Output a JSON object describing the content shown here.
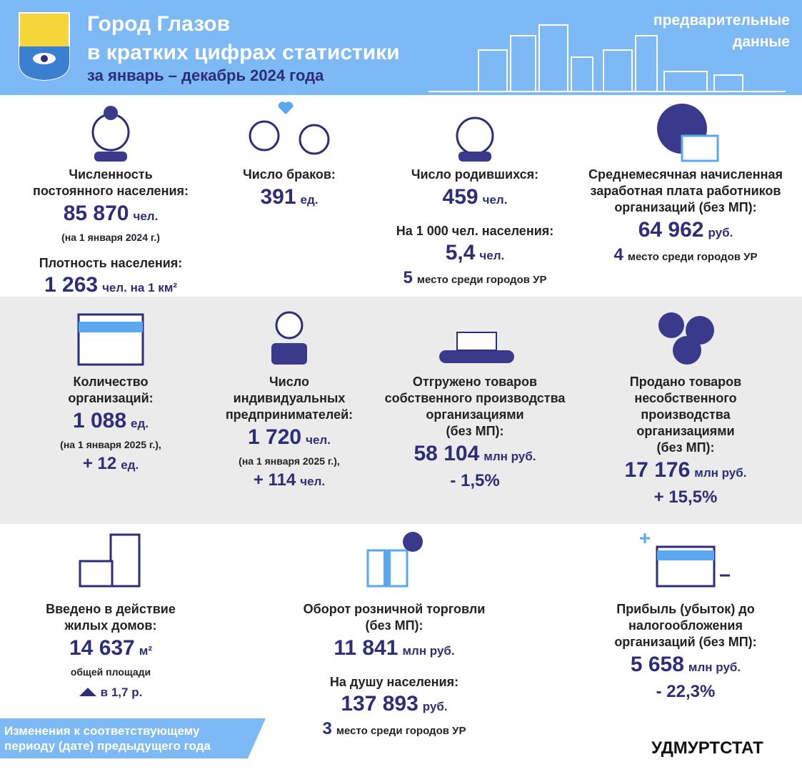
{
  "header": {
    "title": [
      "Город Глазов",
      "в кратких цифрах статистики"
    ],
    "subtitle": "за январь – декабрь 2024 года",
    "note": [
      "предварительные",
      "данные"
    ]
  },
  "rows": [
    [
      {
        "label": [
          "Численность",
          "постоянного населения:"
        ],
        "value": "85 870",
        "unit": "чел.",
        "note": "(на 1 января 2024 г.)",
        "extra_label": "Плотность населения:",
        "extra_value": "1 263",
        "extra_unit": "чел. на 1 км²"
      },
      {
        "label": [
          "Число браков:"
        ],
        "value": "391",
        "unit": "ед."
      },
      {
        "label": [
          "Число родившихся:"
        ],
        "value": "459",
        "unit": "чел.",
        "extra_label": "На 1 000 чел. населения:",
        "extra_value": "5,4",
        "extra_unit": "чел.",
        "rank": "5",
        "rank_text": "место среди городов УР"
      },
      {
        "label": [
          "Среднемесячная начисленная",
          "заработная плата работников",
          "организаций (без МП):"
        ],
        "value": "64 962",
        "unit": "руб.",
        "rank": "4",
        "rank_text": "место среди городов УР"
      }
    ],
    [
      {
        "label": [
          "Количество",
          "организаций:"
        ],
        "value": "1 088",
        "unit": "ед.",
        "note": "(на 1 января 2025 г.),",
        "change": "+ 12",
        "change_unit": "ед."
      },
      {
        "label": [
          "Число",
          "индивидуальных",
          "предпринимателей:"
        ],
        "value": "1 720",
        "unit": "чел.",
        "note": "(на 1 января 2025 г.),",
        "change": "+ 114",
        "change_unit": "чел."
      },
      {
        "label": [
          "Отгружено товаров",
          "собственного производства",
          "организациями",
          "(без МП):"
        ],
        "value": "58 104",
        "unit": "млн руб.",
        "change": "- 1,5%"
      },
      {
        "label": [
          "Продано товаров",
          "несобственного",
          "производства",
          "организациями",
          "(без МП):"
        ],
        "value": "17 176",
        "unit": "млн руб.",
        "change": "+ 15,5%"
      }
    ],
    [
      {
        "label": [
          "Введено в действие",
          "жилых домов:"
        ],
        "value": "14 637",
        "unit": "м²",
        "note": "общей площади",
        "change_unit": "в 1,7 р."
      },
      {
        "label": [
          "Оборот розничной торговли",
          "(без МП):"
        ],
        "value": "11 841",
        "unit": "млн руб.",
        "extra_label": "На душу населения:",
        "extra_value": "137 893",
        "extra_unit": "руб.",
        "rank": "3",
        "rank_text": "место среди городов УР"
      },
      {
        "label": [
          "Прибыль (убыток) до",
          "налогообложения",
          "организаций (без МП):"
        ],
        "value": "5 658",
        "unit": "млн руб.",
        "change": "- 22,3%"
      }
    ]
  ],
  "footer": {
    "legend": [
      "Изменения к соответствующему",
      "периоду (дате) предыдущего года"
    ],
    "source": "УДМУРТСТАТ"
  }
}
